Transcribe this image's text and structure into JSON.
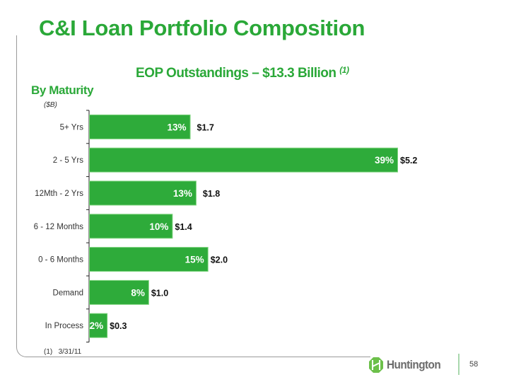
{
  "slide": {
    "title": "C&I Loan Portfolio Composition",
    "subtitle": "EOP Outstandings – $13.3 Billion",
    "subtitle_note": "(1)",
    "section_label": "By Maturity",
    "unit_label": "($B)",
    "footnote_marker": "(1)",
    "footnote_text": "3/31/11",
    "logo_text": "Huntington",
    "page_number": "58"
  },
  "colors": {
    "brand_green": "#2aa838",
    "bar_green": "#2eab3a"
  },
  "chart_data": {
    "type": "bar",
    "orientation": "horizontal",
    "title": "EOP Outstandings – $13.3 Billion",
    "xlabel": "",
    "ylabel": "($B)",
    "categories": [
      "5+ Yrs",
      "2 - 5 Yrs",
      "12Mth - 2 Yrs",
      "6 - 12 Months",
      "0 - 6 Months",
      "Demand",
      "In Process"
    ],
    "values": [
      1.7,
      5.2,
      1.8,
      1.4,
      2.0,
      1.0,
      0.3
    ],
    "value_labels": [
      "$1.7",
      "$5.2",
      "$1.8",
      "$1.4",
      "$2.0",
      "$1.0",
      "$0.3"
    ],
    "percent_labels": [
      "13%",
      "39%",
      "13%",
      "10%",
      "15%",
      "8%",
      "2%"
    ],
    "xlim": [
      0,
      5.2
    ],
    "grid": false,
    "legend": "none"
  }
}
